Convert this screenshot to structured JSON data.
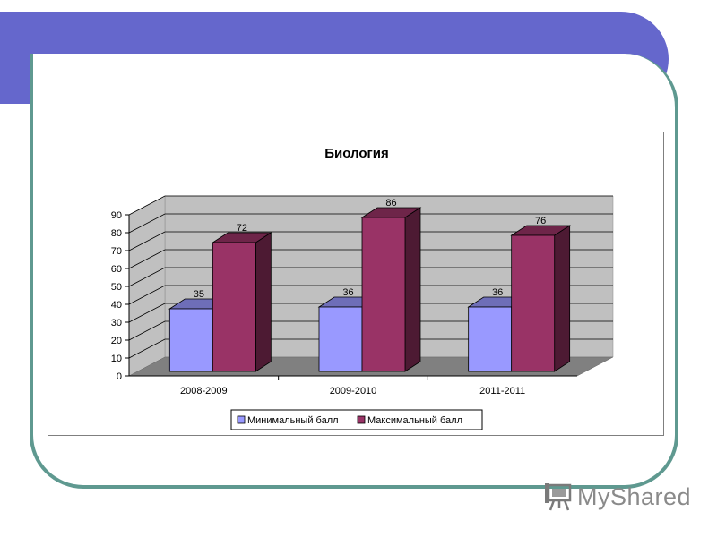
{
  "logo": {
    "text": "MyShared"
  },
  "colors": {
    "header": "#6567cc",
    "frame": "#5f9990",
    "series_min": "#9999ff",
    "series_max": "#993366",
    "wall": "#c0c0c0",
    "floor": "#808080"
  },
  "chart_data": {
    "type": "bar",
    "title": "Биология",
    "categories": [
      "2008-2009",
      "2009-2010",
      "2011-2011"
    ],
    "series": [
      {
        "name": "Минимальный балл",
        "values": [
          35,
          36,
          36
        ],
        "color": "#9999ff"
      },
      {
        "name": "Максимальный балл",
        "values": [
          72,
          86,
          76
        ],
        "color": "#993366"
      }
    ],
    "ylim": [
      0,
      90
    ],
    "yticks": [
      "0",
      "10",
      "20",
      "30",
      "40",
      "50",
      "60",
      "70",
      "80",
      "90"
    ],
    "grid": true,
    "three_d": true,
    "legend_position": "bottom"
  }
}
